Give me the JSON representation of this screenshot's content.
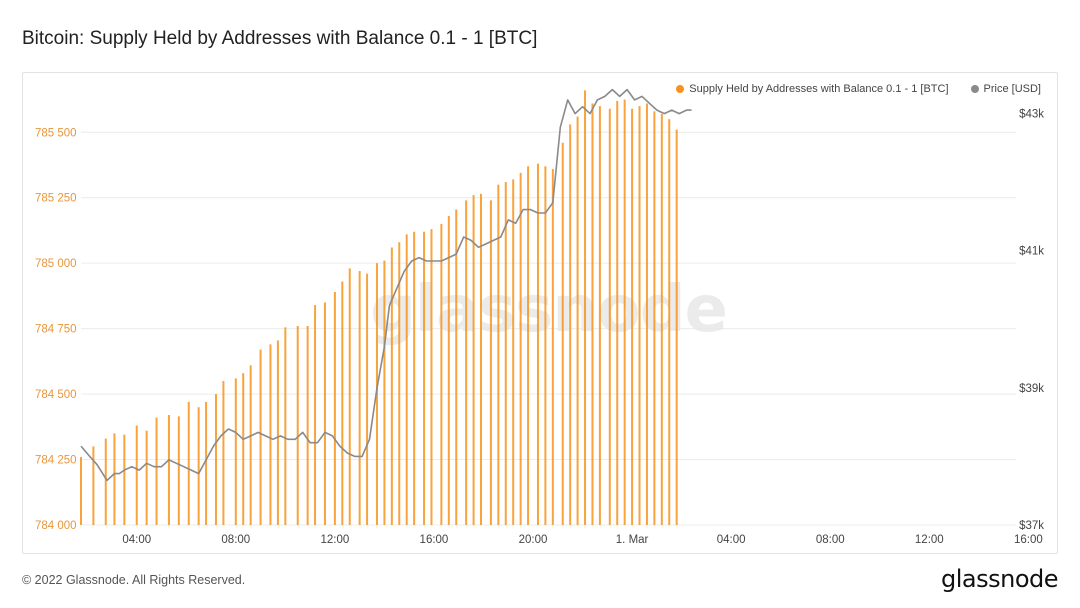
{
  "title": "Bitcoin: Supply Held by Addresses with Balance 0.1 - 1 [BTC]",
  "footer": {
    "copyright": "© 2022 Glassnode. All Rights Reserved.",
    "logo": "glassnode"
  },
  "watermark": "glassnode",
  "colors": {
    "supply": "#f7931a",
    "price": "#8a8a8a",
    "grid": "#ececec",
    "left_axis_text": "#e8963a"
  },
  "chart_data": {
    "type": "bar",
    "title": "Bitcoin: Supply Held by Addresses with Balance 0.1 - 1 [BTC]",
    "legend_position": "top-right",
    "grid": true,
    "x_ticks": [
      "04:00",
      "08:00",
      "12:00",
      "16:00",
      "20:00",
      "1. Mar",
      "04:00",
      "08:00",
      "12:00",
      "16:00"
    ],
    "x_range_hours": [
      1.75,
      39.5
    ],
    "y_left": {
      "label": "",
      "lim": [
        784000,
        785650
      ],
      "ticks": [
        "784 000",
        "784 250",
        "784 500",
        "784 750",
        "785 000",
        "785 250",
        "785 500"
      ],
      "tick_values": [
        784000,
        784250,
        784500,
        784750,
        785000,
        785250,
        785500
      ]
    },
    "y_right": {
      "label": "",
      "lim": [
        37000,
        43300
      ],
      "ticks": [
        "$37k",
        "$39k",
        "$41k",
        "$43k"
      ],
      "tick_values": [
        37000,
        39000,
        41000,
        43000
      ]
    },
    "series": [
      {
        "name": "Supply Held by Addresses with Balance 0.1 - 1 [BTC]",
        "type": "bar",
        "axis": "left",
        "x": [
          1.75,
          2.25,
          2.75,
          3.1,
          3.5,
          4.0,
          4.4,
          4.8,
          5.3,
          5.7,
          6.1,
          6.5,
          6.8,
          7.2,
          7.5,
          8.0,
          8.3,
          8.6,
          9.0,
          9.4,
          9.7,
          10.0,
          10.5,
          10.9,
          11.2,
          11.6,
          12.0,
          12.3,
          12.6,
          13.0,
          13.3,
          13.7,
          14.0,
          14.3,
          14.6,
          14.9,
          15.2,
          15.6,
          15.9,
          16.3,
          16.6,
          16.9,
          17.3,
          17.6,
          17.9,
          18.3,
          18.6,
          18.9,
          19.2,
          19.5,
          19.8,
          20.2,
          20.5,
          20.8,
          21.2,
          21.5,
          21.8,
          22.1,
          22.4,
          22.7,
          23.1,
          23.4,
          23.7,
          24.0,
          24.3,
          24.6,
          24.9,
          25.2,
          25.5,
          25.8
        ],
        "values": [
          784260,
          784300,
          784330,
          784350,
          784345,
          784380,
          784360,
          784410,
          784420,
          784415,
          784470,
          784450,
          784470,
          784500,
          784550,
          784560,
          784580,
          784610,
          784670,
          784690,
          784705,
          784755,
          784760,
          784760,
          784840,
          784850,
          784890,
          784930,
          784980,
          784970,
          784960,
          785000,
          785010,
          785060,
          785080,
          785110,
          785120,
          785120,
          785130,
          785150,
          785180,
          785205,
          785240,
          785260,
          785265,
          785240,
          785300,
          785310,
          785320,
          785345,
          785370,
          785380,
          785370,
          785360,
          785460,
          785530,
          785560,
          785660,
          785610,
          785600,
          785590,
          785620,
          785625,
          785590,
          785600,
          785610,
          785580,
          785570,
          785550,
          785510
        ]
      },
      {
        "name": "Price [USD]",
        "type": "line",
        "axis": "right",
        "x": [
          1.75,
          2.1,
          2.4,
          2.8,
          3.1,
          3.3,
          3.5,
          3.8,
          4.1,
          4.4,
          4.7,
          5.0,
          5.3,
          5.6,
          5.9,
          6.2,
          6.5,
          6.8,
          7.1,
          7.4,
          7.7,
          8.0,
          8.3,
          8.6,
          8.9,
          9.2,
          9.5,
          9.8,
          10.1,
          10.4,
          10.7,
          11.0,
          11.3,
          11.6,
          11.9,
          12.2,
          12.5,
          12.8,
          13.1,
          13.4,
          13.7,
          14.0,
          14.2,
          14.5,
          14.8,
          15.1,
          15.4,
          15.7,
          16.0,
          16.3,
          16.6,
          16.9,
          17.2,
          17.5,
          17.8,
          18.1,
          18.4,
          18.7,
          19.0,
          19.3,
          19.6,
          19.9,
          20.2,
          20.5,
          20.8,
          21.1,
          21.4,
          21.7,
          22.0,
          22.3,
          22.6,
          22.9,
          23.2,
          23.5,
          23.8,
          24.1,
          24.4,
          24.7,
          25.0,
          25.3,
          25.6,
          25.9,
          26.2,
          26.4
        ],
        "values": [
          38150,
          38000,
          37880,
          37650,
          37750,
          37750,
          37800,
          37850,
          37800,
          37900,
          37850,
          37850,
          37950,
          37900,
          37850,
          37800,
          37750,
          37950,
          38150,
          38300,
          38400,
          38350,
          38250,
          38300,
          38350,
          38300,
          38250,
          38300,
          38250,
          38250,
          38350,
          38200,
          38200,
          38350,
          38300,
          38150,
          38050,
          38000,
          38000,
          38250,
          39000,
          39600,
          40200,
          40450,
          40700,
          40850,
          40900,
          40850,
          40850,
          40850,
          40900,
          40950,
          41200,
          41150,
          41050,
          41100,
          41150,
          41200,
          41450,
          41400,
          41600,
          41600,
          41550,
          41550,
          41700,
          42800,
          43200,
          43000,
          43100,
          43000,
          43200,
          43250,
          43350,
          43250,
          43350,
          43200,
          43250,
          43150,
          43050,
          43000,
          43050,
          43000,
          43050,
          43050
        ]
      }
    ]
  }
}
